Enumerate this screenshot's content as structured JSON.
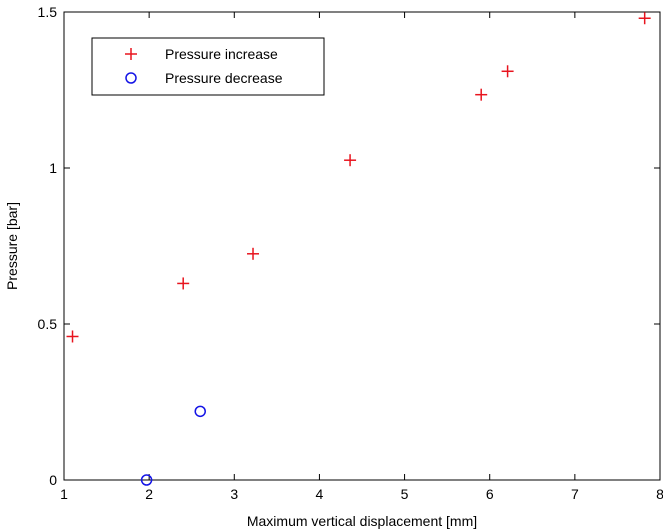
{
  "chart_data": {
    "type": "scatter",
    "title": "",
    "xlabel": "Maximum vertical displacement [mm]",
    "ylabel": "Pressure [bar]",
    "xlim": [
      1,
      8
    ],
    "ylim": [
      0,
      1.5
    ],
    "x_ticks": [
      1,
      2,
      3,
      4,
      5,
      6,
      7,
      8
    ],
    "y_ticks": [
      0,
      0.5,
      1,
      1.5
    ],
    "x_tick_labels": [
      "1",
      "2",
      "3",
      "4",
      "5",
      "6",
      "7",
      "8"
    ],
    "y_tick_labels": [
      "0",
      "0.5",
      "1",
      "1.5"
    ],
    "grid": false,
    "legend_position": "top-left",
    "series": [
      {
        "name": "Pressure increase",
        "marker": "plus",
        "color": "#e8141e",
        "x": [
          1.1,
          2.4,
          3.22,
          4.36,
          5.9,
          6.21,
          7.82
        ],
        "y": [
          0.46,
          0.63,
          0.725,
          1.025,
          1.235,
          1.31,
          1.48
        ]
      },
      {
        "name": "Pressure decrease",
        "marker": "circle",
        "color": "#1414e6",
        "x": [
          1.97,
          2.6
        ],
        "y": [
          0.0,
          0.22
        ]
      }
    ]
  }
}
